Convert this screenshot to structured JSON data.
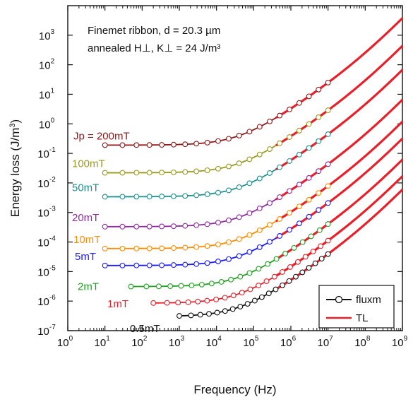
{
  "chart_data": {
    "type": "line",
    "xlabel": "Frequency (Hz)",
    "ylabel": "Energy loss (J/m",
    "ylabel_sup": "3",
    "ylabel_close": ")",
    "xscale": "log",
    "yscale": "log",
    "xlim": [
      1,
      1000000000
    ],
    "ylim": [
      1e-07,
      10000
    ],
    "x_ticks": [
      {
        "base": "10",
        "exp": "0"
      },
      {
        "base": "10",
        "exp": "1"
      },
      {
        "base": "10",
        "exp": "2"
      },
      {
        "base": "10",
        "exp": "3"
      },
      {
        "base": "10",
        "exp": "4"
      },
      {
        "base": "10",
        "exp": "5"
      },
      {
        "base": "10",
        "exp": "6"
      },
      {
        "base": "10",
        "exp": "7"
      },
      {
        "base": "10",
        "exp": "8"
      },
      {
        "base": "10",
        "exp": "9"
      }
    ],
    "y_ticks": [
      {
        "base": "10",
        "exp": "-7"
      },
      {
        "base": "10",
        "exp": "-6"
      },
      {
        "base": "10",
        "exp": "-5"
      },
      {
        "base": "10",
        "exp": "-4"
      },
      {
        "base": "10",
        "exp": "-3"
      },
      {
        "base": "10",
        "exp": "-2"
      },
      {
        "base": "10",
        "exp": "-1"
      },
      {
        "base": "10",
        "exp": "0"
      },
      {
        "base": "10",
        "exp": "1"
      },
      {
        "base": "10",
        "exp": "2"
      },
      {
        "base": "10",
        "exp": "3"
      }
    ],
    "annotation": {
      "line1": "Finemet ribbon, d = 20.3 µm",
      "line2": "annealed H⊥, K⊥ = 24 J/m³"
    },
    "series": [
      {
        "label": "Jp = 200mT",
        "color": "#8b1a1a",
        "base": 0.19,
        "fmin": 10
      },
      {
        "label": "100mT",
        "color": "#9a9a22",
        "base": 0.022,
        "fmin": 10
      },
      {
        "label": "50mT",
        "color": "#1f8f8f",
        "base": 0.0034,
        "fmin": 10
      },
      {
        "label": "20mT",
        "color": "#8e2c9e",
        "base": 0.00033,
        "fmin": 10
      },
      {
        "label": "10mT",
        "color": "#ff8c00",
        "base": 6e-05,
        "fmin": 10
      },
      {
        "label": "5mT",
        "color": "#1a1aff",
        "base": 1.6e-05,
        "fmin": 10
      },
      {
        "label": "2mT",
        "color": "#22a022",
        "base": 3.1e-06,
        "fmin": 50
      },
      {
        "label": "1mT",
        "color": "#e8202a",
        "base": 8.5e-07,
        "fmin": 200
      },
      {
        "label": "0.5mT",
        "color": "#111111",
        "base": 3e-07,
        "fmin": 1000
      }
    ],
    "tl_color": "#e8202a",
    "legend": {
      "placement": "bottom-right",
      "items": [
        {
          "label": "fluxm",
          "color": "#111111"
        },
        {
          "label": "TL",
          "color": "#e8202a"
        }
      ]
    }
  }
}
